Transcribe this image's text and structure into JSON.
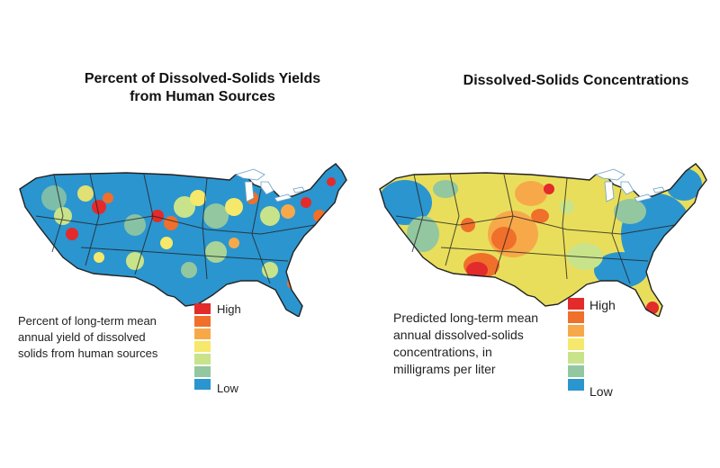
{
  "left": {
    "title_line1": "Percent of Dissolved-Solids Yields",
    "title_line2": "from Human Sources",
    "legend_line1": "Percent of long-term mean",
    "legend_line2": "annual yield of dissolved",
    "legend_line3": "solids from human sources",
    "high_label": "High",
    "low_label": "Low",
    "dominant_color": "#2b95cf",
    "accent_colors": [
      "#e32b2b",
      "#f06f2b",
      "#f7a94a",
      "#f5e86a",
      "#c9e38a",
      "#92c7a0",
      "#2b95cf"
    ]
  },
  "right": {
    "title": "Dissolved-Solids Concentrations",
    "legend_line1": "Predicted long-term mean",
    "legend_line2": "annual dissolved-solids",
    "legend_line3": "concentrations, in",
    "legend_line4": "milligrams per liter",
    "high_label": "High",
    "low_label": "Low",
    "dominant_color": "#e9de5b",
    "accent_colors": [
      "#e32b2b",
      "#f06f2b",
      "#f7a94a",
      "#f5e86a",
      "#c9e38a",
      "#92c7a0",
      "#2b95cf"
    ]
  }
}
